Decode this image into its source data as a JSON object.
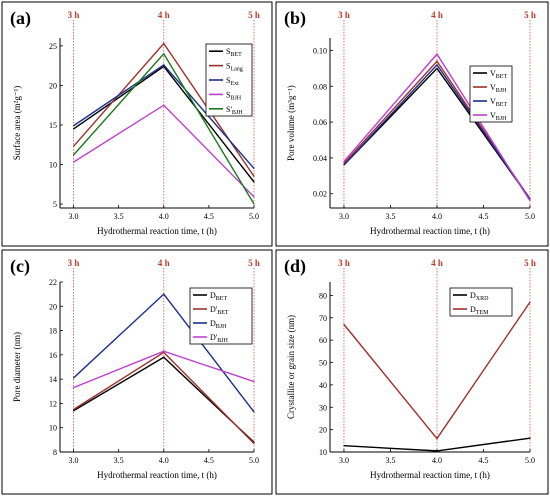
{
  "chart_data": [
    {
      "panel": "(a)",
      "type": "line",
      "xlabel": "Hydrothermal reaction time, t (h)",
      "ylabel": "Surface area (m²g⁻¹)",
      "x": [
        3.0,
        4.0,
        5.0
      ],
      "xticks": [
        "3.0",
        "3.5",
        "4.0",
        "4.5",
        "5.0"
      ],
      "yticks": [
        "5",
        "10",
        "15",
        "20",
        "25"
      ],
      "xlim": [
        2.85,
        5.0
      ],
      "ylim": [
        4.5,
        26
      ],
      "time_markers": [
        "3 h",
        "4 h",
        "5 h"
      ],
      "legend": "top-right",
      "series": [
        {
          "name": "S",
          "sub": "BET",
          "color": "#000000",
          "values": [
            14.5,
            22.4,
            7.8
          ]
        },
        {
          "name": "S",
          "sub": "Lang",
          "color": "#a0302a",
          "values": [
            12.3,
            25.3,
            8.5
          ]
        },
        {
          "name": "S",
          "sub": "Ext",
          "color": "#1c2f8f",
          "values": [
            14.9,
            22.6,
            9.5
          ]
        },
        {
          "name": "S",
          "sub": "BJH",
          "color": "#c040d0",
          "values": [
            10.3,
            17.5,
            5.9
          ]
        },
        {
          "name": "S'",
          "sub": "BJH",
          "color": "#1a7a1a",
          "values": [
            11.2,
            24.0,
            5.0
          ]
        }
      ]
    },
    {
      "panel": "(b)",
      "type": "line",
      "xlabel": "Hydrothermal reaction time, t (h)",
      "ylabel": "Pore volume (m³g⁻¹)",
      "x": [
        3.0,
        4.0,
        5.0
      ],
      "xticks": [
        "3.0",
        "3.5",
        "4.0",
        "4.5",
        "5.0"
      ],
      "yticks": [
        "0.02",
        "0.04",
        "0.06",
        "0.08",
        "0.10"
      ],
      "xlim": [
        2.85,
        5.0
      ],
      "ylim": [
        0.012,
        0.107
      ],
      "time_markers": [
        "3 h",
        "4 h",
        "5 h"
      ],
      "legend": "top-right",
      "series": [
        {
          "name": "V",
          "sub": "BET",
          "color": "#000000",
          "values": [
            0.036,
            0.09,
            0.017
          ]
        },
        {
          "name": "V",
          "sub": "BJH",
          "color": "#a0302a",
          "values": [
            0.037,
            0.094,
            0.017
          ]
        },
        {
          "name": "V",
          "sub": "BET",
          "color": "#1c2f8f",
          "values": [
            0.036,
            0.092,
            0.017
          ]
        },
        {
          "name": "V",
          "sub": "BJH",
          "color": "#c040d0",
          "values": [
            0.038,
            0.098,
            0.016
          ]
        }
      ]
    },
    {
      "panel": "(c)",
      "type": "line",
      "xlabel": "Hydrothermal reaction time, t (h)",
      "ylabel": "Pore diameter (nm)",
      "x": [
        3.0,
        4.0,
        5.0
      ],
      "xticks": [
        "3.0",
        "3.5",
        "4.0",
        "4.5",
        "5.0"
      ],
      "yticks": [
        "8",
        "10",
        "12",
        "14",
        "16",
        "18",
        "20",
        "22"
      ],
      "xlim": [
        2.85,
        5.0
      ],
      "ylim": [
        8,
        22
      ],
      "time_markers": [
        "3 h",
        "4 h",
        "5 h"
      ],
      "legend": "top-right",
      "series": [
        {
          "name": "D",
          "sub": "BET",
          "color": "#000000",
          "values": [
            11.4,
            15.8,
            8.8
          ]
        },
        {
          "name": "D'",
          "sub": "BET",
          "color": "#a0302a",
          "values": [
            11.5,
            16.2,
            8.7
          ]
        },
        {
          "name": "D",
          "sub": "BJH",
          "color": "#1c2f8f",
          "values": [
            14.1,
            21.0,
            11.3
          ]
        },
        {
          "name": "D'",
          "sub": "BJH",
          "color": "#c040d0",
          "values": [
            13.3,
            16.3,
            13.8
          ]
        }
      ]
    },
    {
      "panel": "(d)",
      "type": "line",
      "xlabel": "Hydrothermal reaction time, t (h)",
      "ylabel": "Crystallite or grain size (nm)",
      "x": [
        3.0,
        4.0,
        5.0
      ],
      "xticks": [
        "3.0",
        "3.5",
        "4.0",
        "4.5",
        "5.0"
      ],
      "yticks": [
        "10",
        "20",
        "30",
        "40",
        "50",
        "60",
        "70",
        "80"
      ],
      "xlim": [
        2.85,
        5.0
      ],
      "ylim": [
        10,
        86
      ],
      "time_markers": [
        "3 h",
        "4 h",
        "5 h"
      ],
      "legend": "top-left",
      "series": [
        {
          "name": "D",
          "sub": "XRD",
          "color": "#000000",
          "values": [
            12.8,
            10.5,
            16.2
          ]
        },
        {
          "name": "D",
          "sub": "TEM",
          "color": "#a0302a",
          "values": [
            67.0,
            16.0,
            77.0
          ]
        }
      ]
    }
  ]
}
